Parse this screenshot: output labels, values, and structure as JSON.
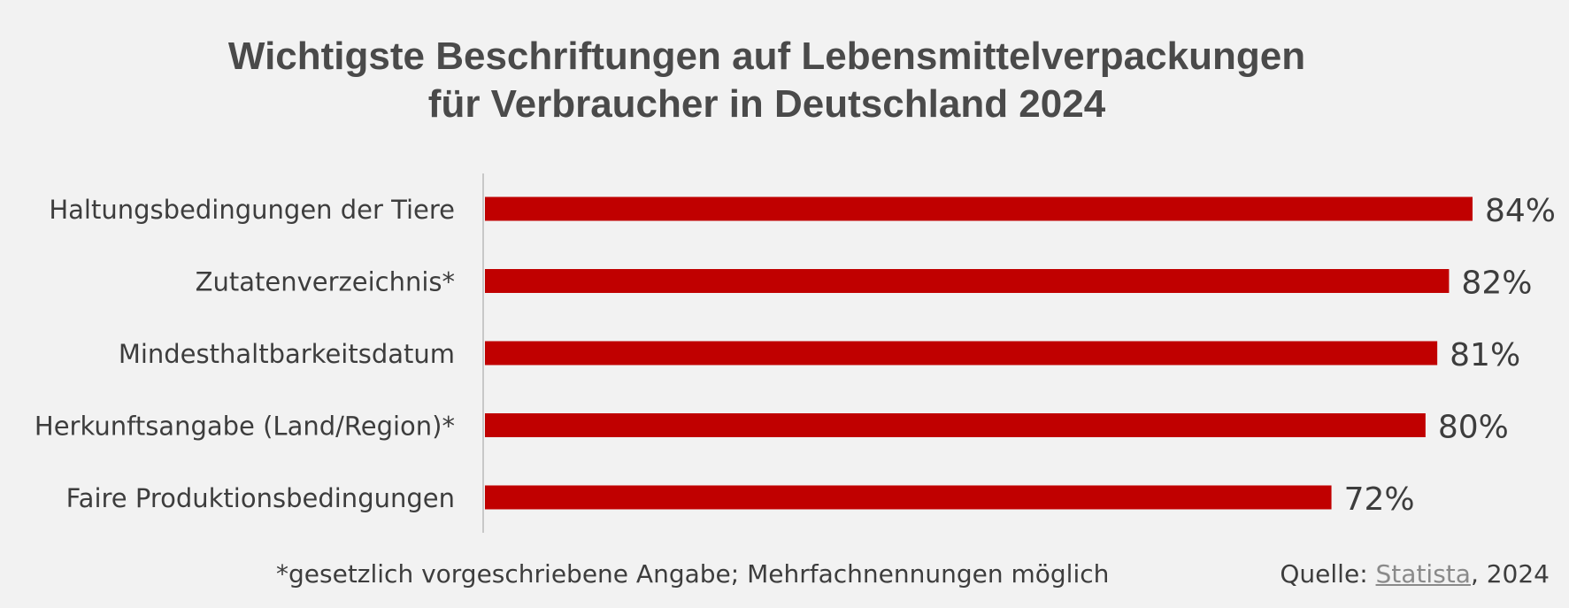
{
  "chart_data": {
    "type": "bar",
    "orientation": "horizontal",
    "title": "Wichtigste Beschriftungen auf Lebensmittelverpackungen für Verbraucher in Deutschland 2024",
    "title_lines": [
      "Wichtigste Beschriftungen auf Lebensmittelverpackungen",
      "für Verbraucher in Deutschland 2024"
    ],
    "categories": [
      "Haltungsbedingungen der Tiere",
      "Zutatenverzeichnis*",
      "Mindesthaltbarkeitsdatum",
      "Herkunftsangabe (Land/Region)*",
      "Faire Produktionsbedingungen"
    ],
    "values": [
      84,
      82,
      81,
      80,
      72
    ],
    "value_labels": [
      "84%",
      "82%",
      "81%",
      "80%",
      "72%"
    ],
    "unit": "%",
    "xlim": [
      0,
      84
    ],
    "xlabel": "",
    "ylabel": "",
    "grid": false,
    "legend": "none",
    "bar_color": "#c00000"
  },
  "footer": {
    "footnote": "*gesetzlich vorgeschriebene Angabe; Mehrfachnennungen möglich",
    "source_prefix": "Quelle: ",
    "source_link": "Statista",
    "source_suffix": ", 2024"
  },
  "colors": {
    "background": "#f2f2f2",
    "bar": "#c00000",
    "title": "#4a4a4a",
    "text": "#3d3d3d",
    "axis": "#c8c8c8",
    "link": "#8a8a8a"
  }
}
